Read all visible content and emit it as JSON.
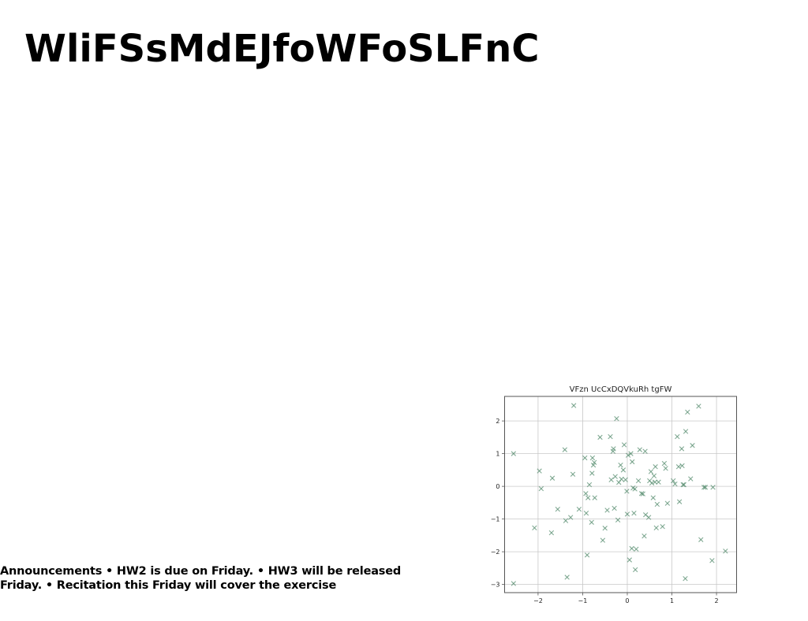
{
  "slide": {
    "title": "WliFSsMdEJfoWFoSLFnC",
    "announcements": "Announcements • HW2 is due on Friday. • HW3 will be released Friday. • Recitation this Friday will cover the exercise"
  },
  "chart_data": {
    "type": "scatter",
    "title": "VFzn UcCxDQVkuRh tgFW",
    "xlabel": "",
    "ylabel": "",
    "xlim": [
      -2.75,
      2.45
    ],
    "ylim": [
      -3.25,
      2.75
    ],
    "xticks": [
      -2,
      -1,
      0,
      1,
      2
    ],
    "yticks": [
      2,
      1,
      0,
      -1,
      -2,
      -3
    ],
    "grid": true,
    "marker": "x",
    "color": "#5a8f72",
    "series": [
      {
        "points": [
          [
            -2.55,
            1.0
          ],
          [
            -2.55,
            -2.97
          ],
          [
            -2.08,
            -1.27
          ],
          [
            -1.97,
            0.47
          ],
          [
            -1.93,
            -0.07
          ],
          [
            -1.7,
            -1.42
          ],
          [
            -1.68,
            0.25
          ],
          [
            -1.56,
            -0.7
          ],
          [
            -1.4,
            1.12
          ],
          [
            -1.38,
            -1.05
          ],
          [
            -1.35,
            -2.78
          ],
          [
            -1.27,
            -0.95
          ],
          [
            -1.22,
            0.37
          ],
          [
            -1.2,
            2.47
          ],
          [
            -1.08,
            -0.7
          ],
          [
            -0.95,
            0.87
          ],
          [
            -0.93,
            -0.22
          ],
          [
            -0.92,
            -0.82
          ],
          [
            -0.9,
            -2.1
          ],
          [
            -0.88,
            -0.35
          ],
          [
            -0.85,
            0.05
          ],
          [
            -0.8,
            -1.1
          ],
          [
            -0.79,
            0.4
          ],
          [
            -0.78,
            0.87
          ],
          [
            -0.76,
            0.65
          ],
          [
            -0.74,
            0.73
          ],
          [
            -0.73,
            -0.35
          ],
          [
            -0.61,
            1.5
          ],
          [
            -0.55,
            -1.65
          ],
          [
            -0.5,
            -1.28
          ],
          [
            -0.45,
            -0.73
          ],
          [
            -0.38,
            1.52
          ],
          [
            -0.36,
            0.2
          ],
          [
            -0.32,
            1.07
          ],
          [
            -0.31,
            1.15
          ],
          [
            -0.29,
            -0.67
          ],
          [
            -0.27,
            0.3
          ],
          [
            -0.24,
            2.07
          ],
          [
            -0.21,
            -1.03
          ],
          [
            -0.19,
            0.12
          ],
          [
            -0.15,
            0.65
          ],
          [
            -0.13,
            0.22
          ],
          [
            -0.09,
            0.5
          ],
          [
            -0.07,
            1.27
          ],
          [
            -0.04,
            0.2
          ],
          [
            -0.01,
            -0.15
          ],
          [
            0.0,
            -0.85
          ],
          [
            0.02,
            0.95
          ],
          [
            0.05,
            -2.25
          ],
          [
            0.08,
            1.0
          ],
          [
            0.1,
            -1.9
          ],
          [
            0.11,
            0.75
          ],
          [
            0.13,
            -0.05
          ],
          [
            0.15,
            -0.82
          ],
          [
            0.17,
            -0.08
          ],
          [
            0.18,
            -2.55
          ],
          [
            0.2,
            -1.92
          ],
          [
            0.25,
            0.17
          ],
          [
            0.28,
            1.12
          ],
          [
            0.32,
            -0.22
          ],
          [
            0.35,
            -0.23
          ],
          [
            0.38,
            -1.52
          ],
          [
            0.4,
            1.07
          ],
          [
            0.41,
            -0.87
          ],
          [
            0.48,
            -0.95
          ],
          [
            0.5,
            0.17
          ],
          [
            0.53,
            0.45
          ],
          [
            0.55,
            0.1
          ],
          [
            0.58,
            -0.35
          ],
          [
            0.6,
            0.32
          ],
          [
            0.62,
            0.13
          ],
          [
            0.63,
            0.6
          ],
          [
            0.65,
            -1.27
          ],
          [
            0.67,
            -0.55
          ],
          [
            0.7,
            0.13
          ],
          [
            0.79,
            -1.23
          ],
          [
            0.83,
            0.7
          ],
          [
            0.86,
            0.55
          ],
          [
            0.9,
            -0.52
          ],
          [
            1.03,
            0.17
          ],
          [
            1.07,
            0.07
          ],
          [
            1.12,
            1.52
          ],
          [
            1.15,
            0.6
          ],
          [
            1.17,
            -0.47
          ],
          [
            1.22,
            1.15
          ],
          [
            1.23,
            0.63
          ],
          [
            1.25,
            0.05
          ],
          [
            1.27,
            0.05
          ],
          [
            1.3,
            -2.82
          ],
          [
            1.31,
            1.68
          ],
          [
            1.35,
            2.27
          ],
          [
            1.42,
            0.23
          ],
          [
            1.46,
            1.25
          ],
          [
            1.6,
            2.45
          ],
          [
            1.65,
            -1.63
          ],
          [
            1.72,
            -0.03
          ],
          [
            1.75,
            -0.03
          ],
          [
            1.9,
            -2.27
          ],
          [
            1.92,
            -0.03
          ],
          [
            2.2,
            -1.98
          ]
        ]
      }
    ]
  }
}
